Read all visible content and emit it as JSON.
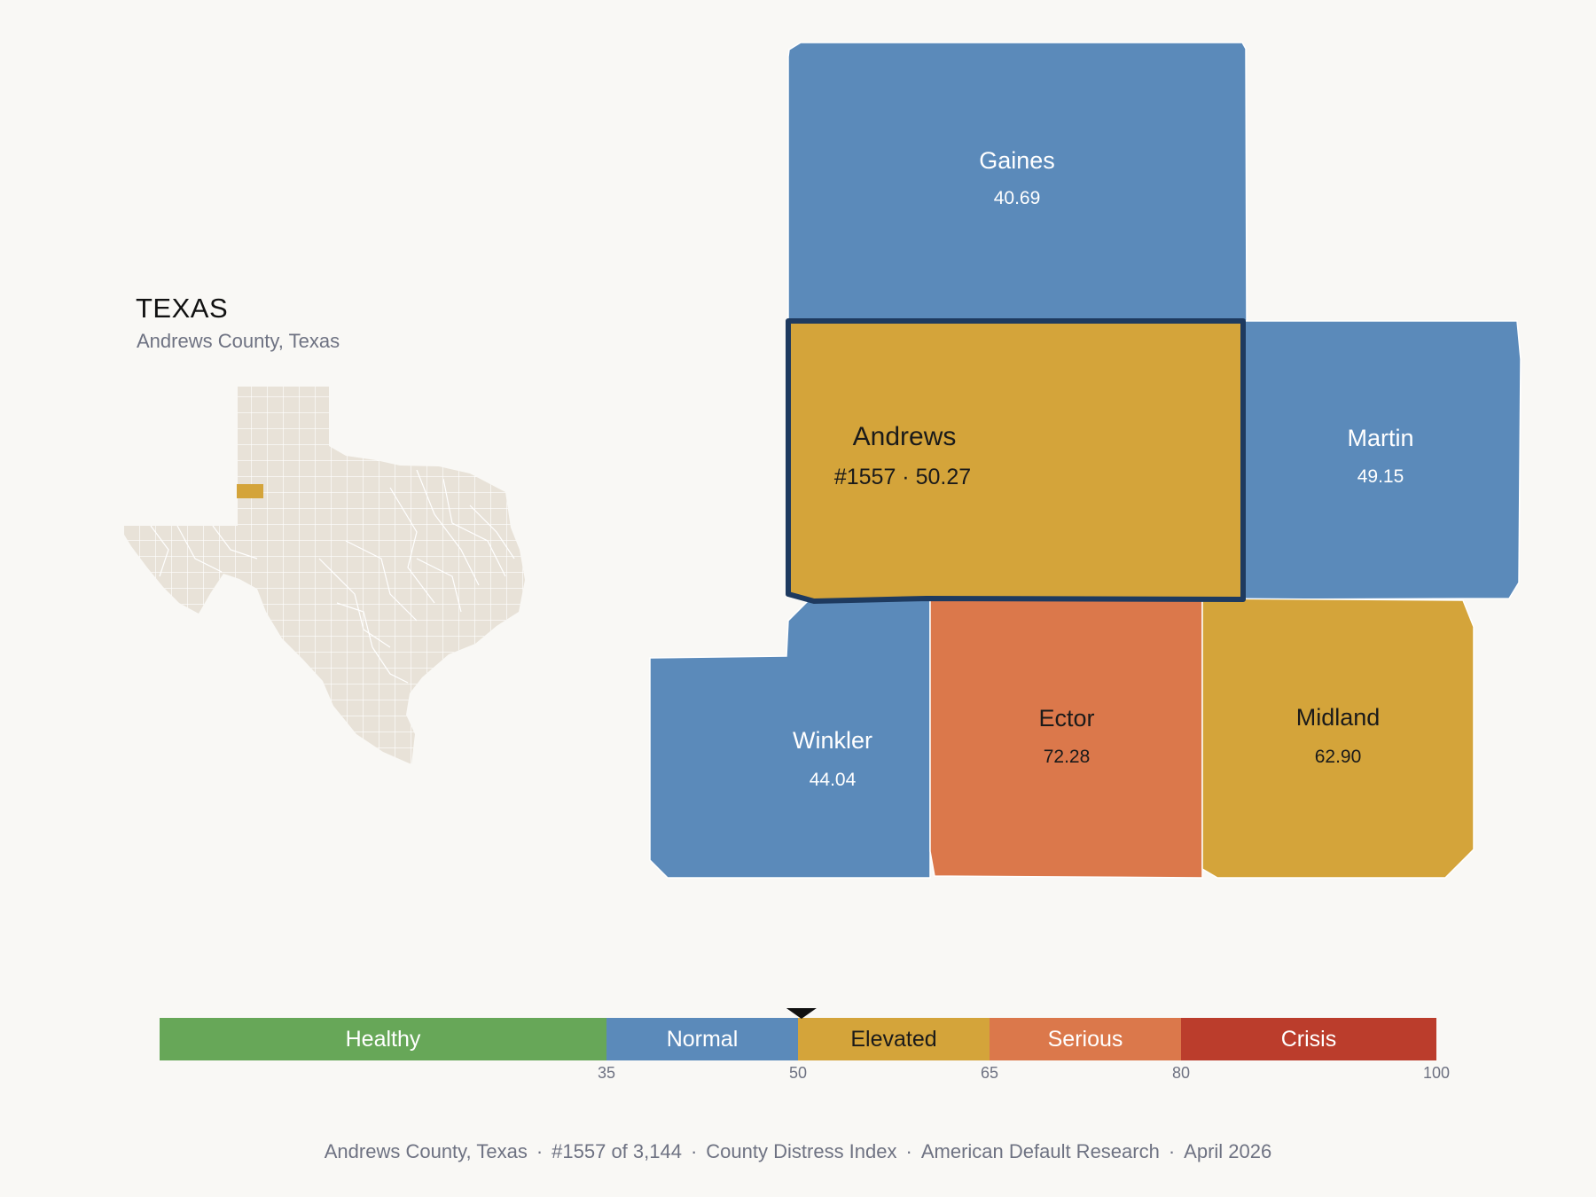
{
  "state": {
    "title": "TEXAS",
    "subtitle": "Andrews County, Texas",
    "base_color": "#e8e2d8",
    "highlight_color": "#d4a43a"
  },
  "counties": [
    {
      "name": "Gaines",
      "value_label": "40.69",
      "value": 40.69,
      "color": "#5b8aba",
      "text_color": "#ffffff"
    },
    {
      "name": "Andrews",
      "value_label": "#1557 · 50.27",
      "value": 50.27,
      "rank": 1557,
      "color": "#d4a43a",
      "text_color": "#1a1a1a",
      "selected": true
    },
    {
      "name": "Martin",
      "value_label": "49.15",
      "value": 49.15,
      "color": "#5b8aba",
      "text_color": "#ffffff"
    },
    {
      "name": "Winkler",
      "value_label": "44.04",
      "value": 44.04,
      "color": "#5b8aba",
      "text_color": "#ffffff"
    },
    {
      "name": "Ector",
      "value_label": "72.28",
      "value": 72.28,
      "color": "#db784b",
      "text_color": "#1a1a1a"
    },
    {
      "name": "Midland",
      "value_label": "62.90",
      "value": 62.9,
      "color": "#d4a43a",
      "text_color": "#1a1a1a"
    }
  ],
  "selected_outline_color": "#1e3a5f",
  "scale": {
    "min": 0,
    "max": 100,
    "marker_value": 50.27,
    "segments": [
      {
        "label": "Healthy",
        "from": 0,
        "to": 35,
        "color": "#67a758",
        "text_color": "#ffffff"
      },
      {
        "label": "Normal",
        "from": 35,
        "to": 50,
        "color": "#5b8aba",
        "text_color": "#ffffff"
      },
      {
        "label": "Elevated",
        "from": 50,
        "to": 65,
        "color": "#d4a43a",
        "text_color": "#1a1a1a"
      },
      {
        "label": "Serious",
        "from": 65,
        "to": 80,
        "color": "#db784b",
        "text_color": "#ffffff"
      },
      {
        "label": "Crisis",
        "from": 80,
        "to": 100,
        "color": "#bb3d2c",
        "text_color": "#ffffff"
      }
    ],
    "ticks": [
      "35",
      "50",
      "65",
      "80",
      "100"
    ]
  },
  "footer": {
    "county": "Andrews County, Texas",
    "rank": "#1557 of 3,144",
    "index": "County Distress Index",
    "source": "American Default Research",
    "date": "April 2026",
    "separator": "·"
  }
}
